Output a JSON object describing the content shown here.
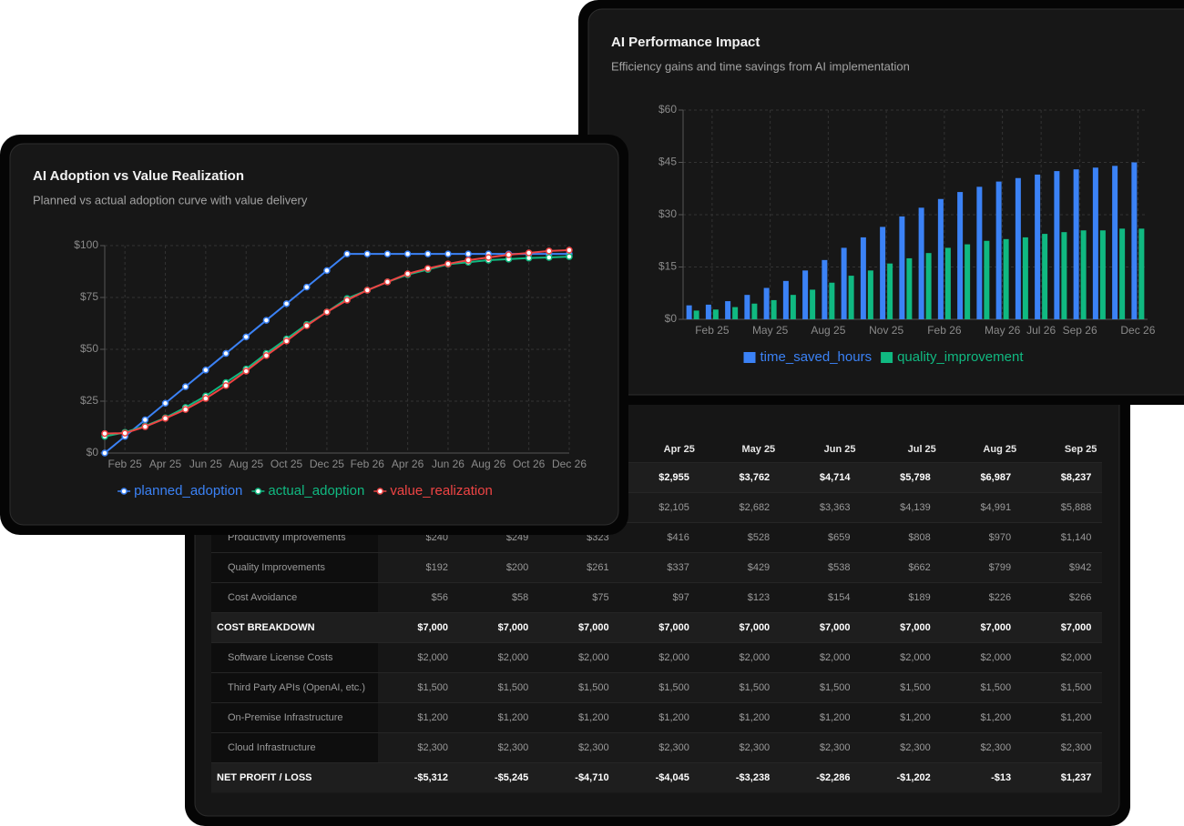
{
  "chart_data": [
    {
      "type": "line",
      "title": "AI Adoption vs Value Realization",
      "subtitle": "Planned vs actual adoption curve with value delivery",
      "categories": [
        null,
        "Feb 25",
        null,
        "Apr 25",
        null,
        "Jun 25",
        null,
        "Aug 25",
        null,
        "Oct 25",
        null,
        "Dec 25",
        null,
        "Feb 26",
        null,
        "Apr 26",
        null,
        "Jun 26",
        null,
        "Aug 26",
        null,
        "Oct 26",
        null,
        "Dec 26"
      ],
      "series": [
        {
          "name": "planned_adoption",
          "color": "#3b82f6",
          "values": [
            0,
            8,
            16,
            24,
            32,
            40,
            48,
            56,
            64,
            72,
            80,
            88,
            96,
            96,
            96,
            96,
            96,
            96,
            96,
            96,
            96,
            96,
            96,
            96
          ]
        },
        {
          "name": "actual_adoption",
          "color": "#10b981",
          "values": [
            8,
            10,
            13,
            17,
            22,
            27.5,
            34,
            40.5,
            48,
            55,
            62,
            68,
            74.5,
            78.5,
            82.5,
            86,
            88.5,
            91,
            92,
            93,
            93.5,
            94,
            94.3,
            94.7
          ]
        },
        {
          "name": "value_realization",
          "color": "#ef4444",
          "values": [
            9.4,
            9.6,
            12.7,
            16.7,
            21,
            26.3,
            32.5,
            39.5,
            47,
            54,
            61.4,
            68,
            73.7,
            78.5,
            82.5,
            86.4,
            89,
            91.2,
            93,
            94.3,
            95.6,
            96.5,
            97.4,
            97.8
          ]
        }
      ],
      "ylim": [
        0,
        100
      ],
      "yticks": [
        {
          "value": 0,
          "label": "$0"
        },
        {
          "value": 25,
          "label": "$25"
        },
        {
          "value": 50,
          "label": "$50"
        },
        {
          "value": 75,
          "label": "$75"
        },
        {
          "value": 100,
          "label": "$100"
        }
      ],
      "grid": true,
      "legend": "bottom"
    },
    {
      "type": "bar",
      "title": "AI Performance Impact",
      "subtitle": "Efficiency gains and time savings from AI implementation",
      "categories": [
        null,
        "Feb 25",
        null,
        null,
        "May 25",
        null,
        null,
        "Aug 25",
        null,
        null,
        "Nov 25",
        null,
        null,
        "Feb 26",
        null,
        null,
        "May 26",
        null,
        "Jul 26",
        null,
        "Sep 26",
        null,
        null,
        "Dec 26"
      ],
      "series": [
        {
          "name": "time_saved_hours",
          "color": "#3b82f6",
          "values": [
            4,
            4.2,
            5.2,
            7,
            9,
            11,
            14,
            17,
            20.5,
            23.5,
            26.5,
            29.5,
            32,
            34.5,
            36.5,
            38,
            39.5,
            40.5,
            41.5,
            42.5,
            43,
            43.5,
            44,
            45
          ]
        },
        {
          "name": "quality_improvement",
          "color": "#10b981",
          "values": [
            2.5,
            2.8,
            3.5,
            4.5,
            5.5,
            7,
            8.5,
            10.5,
            12.5,
            14,
            16,
            17.5,
            19,
            20.5,
            21.5,
            22.5,
            23,
            23.5,
            24.5,
            25,
            25.5,
            25.5,
            26,
            26
          ]
        }
      ],
      "ylim": [
        0,
        60
      ],
      "yticks": [
        {
          "value": 0,
          "label": "$0"
        },
        {
          "value": 15,
          "label": "$15"
        },
        {
          "value": 30,
          "label": "$30"
        },
        {
          "value": 45,
          "label": "$45"
        },
        {
          "value": 60,
          "label": "$60"
        }
      ],
      "grid": true,
      "legend": "bottom"
    }
  ],
  "table": {
    "columns": [
      null,
      null,
      null,
      "Apr 25",
      "May 25",
      "Jun 25",
      "Jul 25",
      "Aug 25",
      "Sep 25"
    ],
    "rows": [
      {
        "label": null,
        "bold": true,
        "values": [
          null,
          null,
          null,
          "$2,955",
          "$3,762",
          "$4,714",
          "$5,798",
          "$6,987",
          "$8,237"
        ]
      },
      {
        "label": null,
        "bold": false,
        "values": [
          null,
          null,
          null,
          "$2,105",
          "$2,682",
          "$3,363",
          "$4,139",
          "$4,991",
          "$5,888"
        ]
      },
      {
        "label": "Productivity Improvements",
        "bold": false,
        "values": [
          "$240",
          "$249",
          "$323",
          "$416",
          "$528",
          "$659",
          "$808",
          "$970",
          "$1,140"
        ]
      },
      {
        "label": "Quality Improvements",
        "bold": false,
        "values": [
          "$192",
          "$200",
          "$261",
          "$337",
          "$429",
          "$538",
          "$662",
          "$799",
          "$942"
        ]
      },
      {
        "label": "Cost Avoidance",
        "bold": false,
        "values": [
          "$56",
          "$58",
          "$75",
          "$97",
          "$123",
          "$154",
          "$189",
          "$226",
          "$266"
        ]
      },
      {
        "label": "COST BREAKDOWN",
        "bold": true,
        "values": [
          "$7,000",
          "$7,000",
          "$7,000",
          "$7,000",
          "$7,000",
          "$7,000",
          "$7,000",
          "$7,000",
          "$7,000"
        ]
      },
      {
        "label": "Software License Costs",
        "bold": false,
        "values": [
          "$2,000",
          "$2,000",
          "$2,000",
          "$2,000",
          "$2,000",
          "$2,000",
          "$2,000",
          "$2,000",
          "$2,000"
        ]
      },
      {
        "label": "Third Party APIs (OpenAI, etc.)",
        "bold": false,
        "values": [
          "$1,500",
          "$1,500",
          "$1,500",
          "$1,500",
          "$1,500",
          "$1,500",
          "$1,500",
          "$1,500",
          "$1,500"
        ]
      },
      {
        "label": "On-Premise Infrastructure",
        "bold": false,
        "values": [
          "$1,200",
          "$1,200",
          "$1,200",
          "$1,200",
          "$1,200",
          "$1,200",
          "$1,200",
          "$1,200",
          "$1,200"
        ]
      },
      {
        "label": "Cloud Infrastructure",
        "bold": false,
        "values": [
          "$2,300",
          "$2,300",
          "$2,300",
          "$2,300",
          "$2,300",
          "$2,300",
          "$2,300",
          "$2,300",
          "$2,300"
        ]
      },
      {
        "label": "NET PROFIT / LOSS",
        "bold": true,
        "values": [
          "-$5,312",
          "-$5,245",
          "-$4,710",
          "-$4,045",
          "-$3,238",
          "-$2,286",
          "-$1,202",
          "-$13",
          "$1,237"
        ]
      }
    ]
  }
}
